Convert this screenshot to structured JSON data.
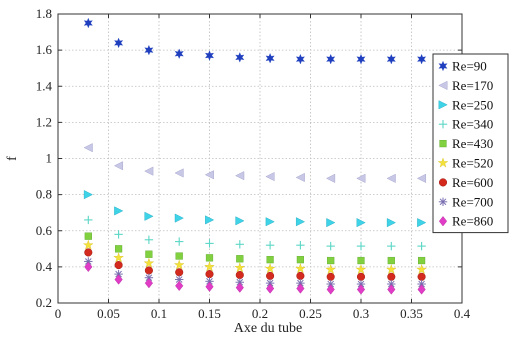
{
  "chart_data": {
    "type": "scatter",
    "xlabel": "Axe du tube",
    "ylabel": "f",
    "xlim": [
      0,
      0.4
    ],
    "ylim": [
      0.2,
      1.8
    ],
    "x_ticks": [
      "0",
      "0.05",
      "0.1",
      "0.15",
      "0.2",
      "0.25",
      "0.3",
      "0.35",
      "0.4"
    ],
    "y_ticks": [
      "0.2",
      "0.4",
      "0.6",
      "0.8",
      "1",
      "1.2",
      "1.4",
      "1.6",
      "1.8"
    ],
    "grid": true,
    "legend_position": "right",
    "x": [
      0.03,
      0.06,
      0.09,
      0.12,
      0.15,
      0.18,
      0.21,
      0.24,
      0.27,
      0.3,
      0.33,
      0.36
    ],
    "series": [
      {
        "name": "Re=90",
        "marker": "hexastar",
        "color": "#1f3fbf",
        "values": [
          1.75,
          1.64,
          1.6,
          1.58,
          1.57,
          1.56,
          1.555,
          1.55,
          1.55,
          1.55,
          1.55,
          1.55
        ]
      },
      {
        "name": "Re=170",
        "marker": "triangle-left",
        "color": "#c8c8e6",
        "values": [
          1.06,
          0.96,
          0.93,
          0.92,
          0.91,
          0.905,
          0.9,
          0.895,
          0.89,
          0.89,
          0.89,
          0.89
        ]
      },
      {
        "name": "Re=250",
        "marker": "triangle-right",
        "color": "#3fd3e8",
        "values": [
          0.8,
          0.71,
          0.68,
          0.67,
          0.66,
          0.655,
          0.65,
          0.65,
          0.645,
          0.645,
          0.645,
          0.645
        ]
      },
      {
        "name": "Re=340",
        "marker": "plus",
        "color": "#5cd6c6",
        "values": [
          0.66,
          0.58,
          0.55,
          0.54,
          0.53,
          0.525,
          0.52,
          0.52,
          0.515,
          0.515,
          0.515,
          0.515
        ]
      },
      {
        "name": "Re=430",
        "marker": "square",
        "color": "#80d040",
        "values": [
          0.57,
          0.5,
          0.47,
          0.46,
          0.45,
          0.445,
          0.44,
          0.44,
          0.435,
          0.435,
          0.435,
          0.435
        ]
      },
      {
        "name": "Re=520",
        "marker": "star5",
        "color": "#f4e23c",
        "values": [
          0.52,
          0.45,
          0.42,
          0.41,
          0.4,
          0.395,
          0.39,
          0.39,
          0.385,
          0.385,
          0.385,
          0.385
        ]
      },
      {
        "name": "Re=600",
        "marker": "circle",
        "color": "#d42a1e",
        "values": [
          0.48,
          0.41,
          0.38,
          0.37,
          0.36,
          0.355,
          0.35,
          0.35,
          0.345,
          0.345,
          0.345,
          0.345
        ]
      },
      {
        "name": "Re=700",
        "marker": "asterisk",
        "color": "#7a6fb0",
        "values": [
          0.43,
          0.36,
          0.34,
          0.33,
          0.32,
          0.315,
          0.31,
          0.31,
          0.305,
          0.305,
          0.305,
          0.305
        ]
      },
      {
        "name": "Re=860",
        "marker": "diamond",
        "color": "#e03cc6",
        "values": [
          0.4,
          0.33,
          0.31,
          0.295,
          0.29,
          0.285,
          0.28,
          0.28,
          0.275,
          0.275,
          0.275,
          0.275
        ]
      }
    ]
  }
}
